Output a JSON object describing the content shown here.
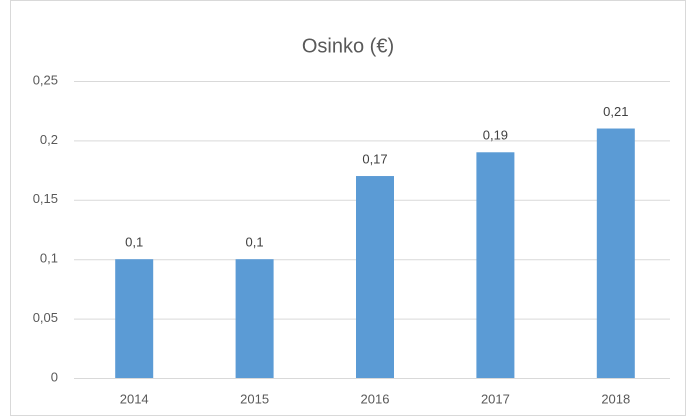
{
  "chart_data": {
    "type": "bar",
    "title": "Osinko (€)",
    "categories": [
      "2014",
      "2015",
      "2016",
      "2017",
      "2018"
    ],
    "values": [
      0.1,
      0.1,
      0.17,
      0.19,
      0.21
    ],
    "value_labels": [
      "0,1",
      "0,1",
      "0,17",
      "0,19",
      "0,21"
    ],
    "color": "#5b9bd5",
    "ylim": [
      0,
      0.25
    ],
    "yticks": [
      0,
      {
        "value": 0.05,
        "label": "0,05"
      },
      {
        "value": 0.1,
        "label": "0,1"
      },
      {
        "value": 0.15,
        "label": "0,15"
      },
      {
        "value": 0.2,
        "label": "0,2"
      },
      {
        "value": 0.25,
        "label": "0,25"
      }
    ],
    "grid": true
  }
}
